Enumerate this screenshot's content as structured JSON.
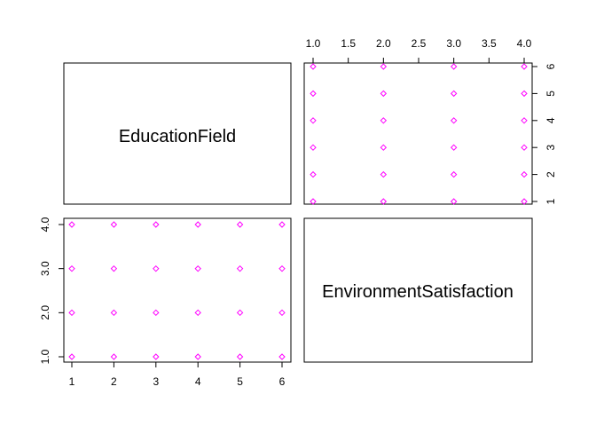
{
  "chart_data": {
    "type": "scatter",
    "layout": "pairs-matrix",
    "point_color": "#ff00ff",
    "point_shape": "open-diamond",
    "variables": [
      {
        "name": "EducationField",
        "range": [
          1,
          6
        ]
      },
      {
        "name": "EnvironmentSatisfaction",
        "range": [
          1,
          4
        ]
      }
    ],
    "panels": [
      {
        "position": "top-right",
        "x_variable": "EnvironmentSatisfaction",
        "y_variable": "EducationField",
        "xlim": [
          1,
          4
        ],
        "ylim": [
          1,
          6
        ],
        "x_ticks": [
          "1.0",
          "1.5",
          "2.0",
          "2.5",
          "3.0",
          "3.5",
          "4.0"
        ],
        "x_tick_values": [
          1,
          1.5,
          2,
          2.5,
          3,
          3.5,
          4
        ],
        "y_ticks": [
          "1",
          "2",
          "3",
          "4",
          "5",
          "6"
        ],
        "y_tick_values": [
          1,
          2,
          3,
          4,
          5,
          6
        ],
        "points": [
          [
            1,
            1
          ],
          [
            1,
            2
          ],
          [
            1,
            3
          ],
          [
            1,
            4
          ],
          [
            1,
            5
          ],
          [
            1,
            6
          ],
          [
            2,
            1
          ],
          [
            2,
            2
          ],
          [
            2,
            3
          ],
          [
            2,
            4
          ],
          [
            2,
            5
          ],
          [
            2,
            6
          ],
          [
            3,
            1
          ],
          [
            3,
            2
          ],
          [
            3,
            3
          ],
          [
            3,
            4
          ],
          [
            3,
            5
          ],
          [
            3,
            6
          ],
          [
            4,
            1
          ],
          [
            4,
            2
          ],
          [
            4,
            3
          ],
          [
            4,
            4
          ],
          [
            4,
            5
          ],
          [
            4,
            6
          ]
        ]
      },
      {
        "position": "bottom-left",
        "x_variable": "EducationField",
        "y_variable": "EnvironmentSatisfaction",
        "xlim": [
          1,
          6
        ],
        "ylim": [
          1,
          4
        ],
        "x_ticks": [
          "1",
          "2",
          "3",
          "4",
          "5",
          "6"
        ],
        "x_tick_values": [
          1,
          2,
          3,
          4,
          5,
          6
        ],
        "y_ticks": [
          "1.0",
          "2.0",
          "3.0",
          "4.0"
        ],
        "y_tick_values": [
          1,
          2,
          3,
          4
        ],
        "points": [
          [
            1,
            1
          ],
          [
            2,
            1
          ],
          [
            3,
            1
          ],
          [
            4,
            1
          ],
          [
            5,
            1
          ],
          [
            6,
            1
          ],
          [
            1,
            2
          ],
          [
            2,
            2
          ],
          [
            3,
            2
          ],
          [
            4,
            2
          ],
          [
            5,
            2
          ],
          [
            6,
            2
          ],
          [
            1,
            3
          ],
          [
            2,
            3
          ],
          [
            3,
            3
          ],
          [
            4,
            3
          ],
          [
            5,
            3
          ],
          [
            6,
            3
          ],
          [
            1,
            4
          ],
          [
            2,
            4
          ],
          [
            3,
            4
          ],
          [
            4,
            4
          ],
          [
            5,
            4
          ],
          [
            6,
            4
          ]
        ]
      }
    ]
  }
}
